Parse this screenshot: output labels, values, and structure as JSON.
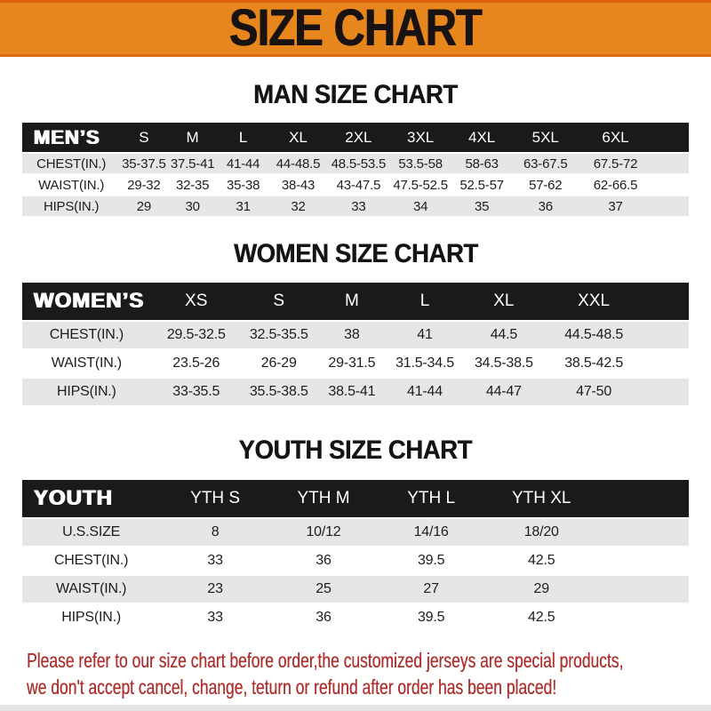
{
  "banner": {
    "title": "SIZE CHART"
  },
  "sections": {
    "men": {
      "title": "MAN SIZE CHART"
    },
    "women": {
      "title": "WOMEN SIZE CHART"
    },
    "youth": {
      "title": "YOUTH SIZE CHART"
    }
  },
  "mens_table": {
    "header": [
      "MEN’S",
      "S",
      "M",
      "L",
      "XL",
      "2XL",
      "3XL",
      "4XL",
      "5XL",
      "6XL"
    ],
    "rows": [
      [
        "CHEST(IN.)",
        "35-37.5",
        "37.5-41",
        "41-44",
        "44-48.5",
        "48.5-53.5",
        "53.5-58",
        "58-63",
        "63-67.5",
        "67.5-72"
      ],
      [
        "WAIST(IN.)",
        "29-32",
        "32-35",
        "35-38",
        "38-43",
        "43-47.5",
        "47.5-52.5",
        "52.5-57",
        "57-62",
        "62-66.5"
      ],
      [
        "HIPS(IN.)",
        "29",
        "30",
        "31",
        "32",
        "33",
        "34",
        "35",
        "36",
        "37"
      ]
    ]
  },
  "womens_table": {
    "header": [
      "WOMEN’S",
      "XS",
      "S",
      "M",
      "L",
      "XL",
      "XXL"
    ],
    "rows": [
      [
        "CHEST(IN.)",
        "29.5-32.5",
        "32.5-35.5",
        "38",
        "41",
        "44.5",
        "44.5-48.5"
      ],
      [
        "WAIST(IN.)",
        "23.5-26",
        "26-29",
        "29-31.5",
        "31.5-34.5",
        "34.5-38.5",
        "38.5-42.5"
      ],
      [
        "HIPS(IN.)",
        "33-35.5",
        "35.5-38.5",
        "38.5-41",
        "41-44",
        "44-47",
        "47-50"
      ]
    ]
  },
  "youth_table": {
    "header": [
      "YOUTH",
      "YTH S",
      "YTH M",
      "YTH L",
      "YTH XL"
    ],
    "rows": [
      [
        "U.S.SIZE",
        "8",
        "10/12",
        "14/16",
        "18/20"
      ],
      [
        "CHEST(IN.)",
        "33",
        "36",
        "39.5",
        "42.5"
      ],
      [
        "WAIST(IN.)",
        "23",
        "25",
        "27",
        "29"
      ],
      [
        "HIPS(IN.)",
        "33",
        "36",
        "39.5",
        "42.5"
      ]
    ]
  },
  "footer": {
    "line1": "Please refer to our size chart before order,the customized jerseys are special products,",
    "line2": "we don't accept cancel, change, teturn or refund after order has been placed!"
  },
  "colors": {
    "banner_bg": "#E8861E",
    "banner_edge": "#DC6A12",
    "header_bar": "#1A1A1A",
    "row_stripe": "#E6E6E6",
    "notice_text": "#B02E2C"
  }
}
